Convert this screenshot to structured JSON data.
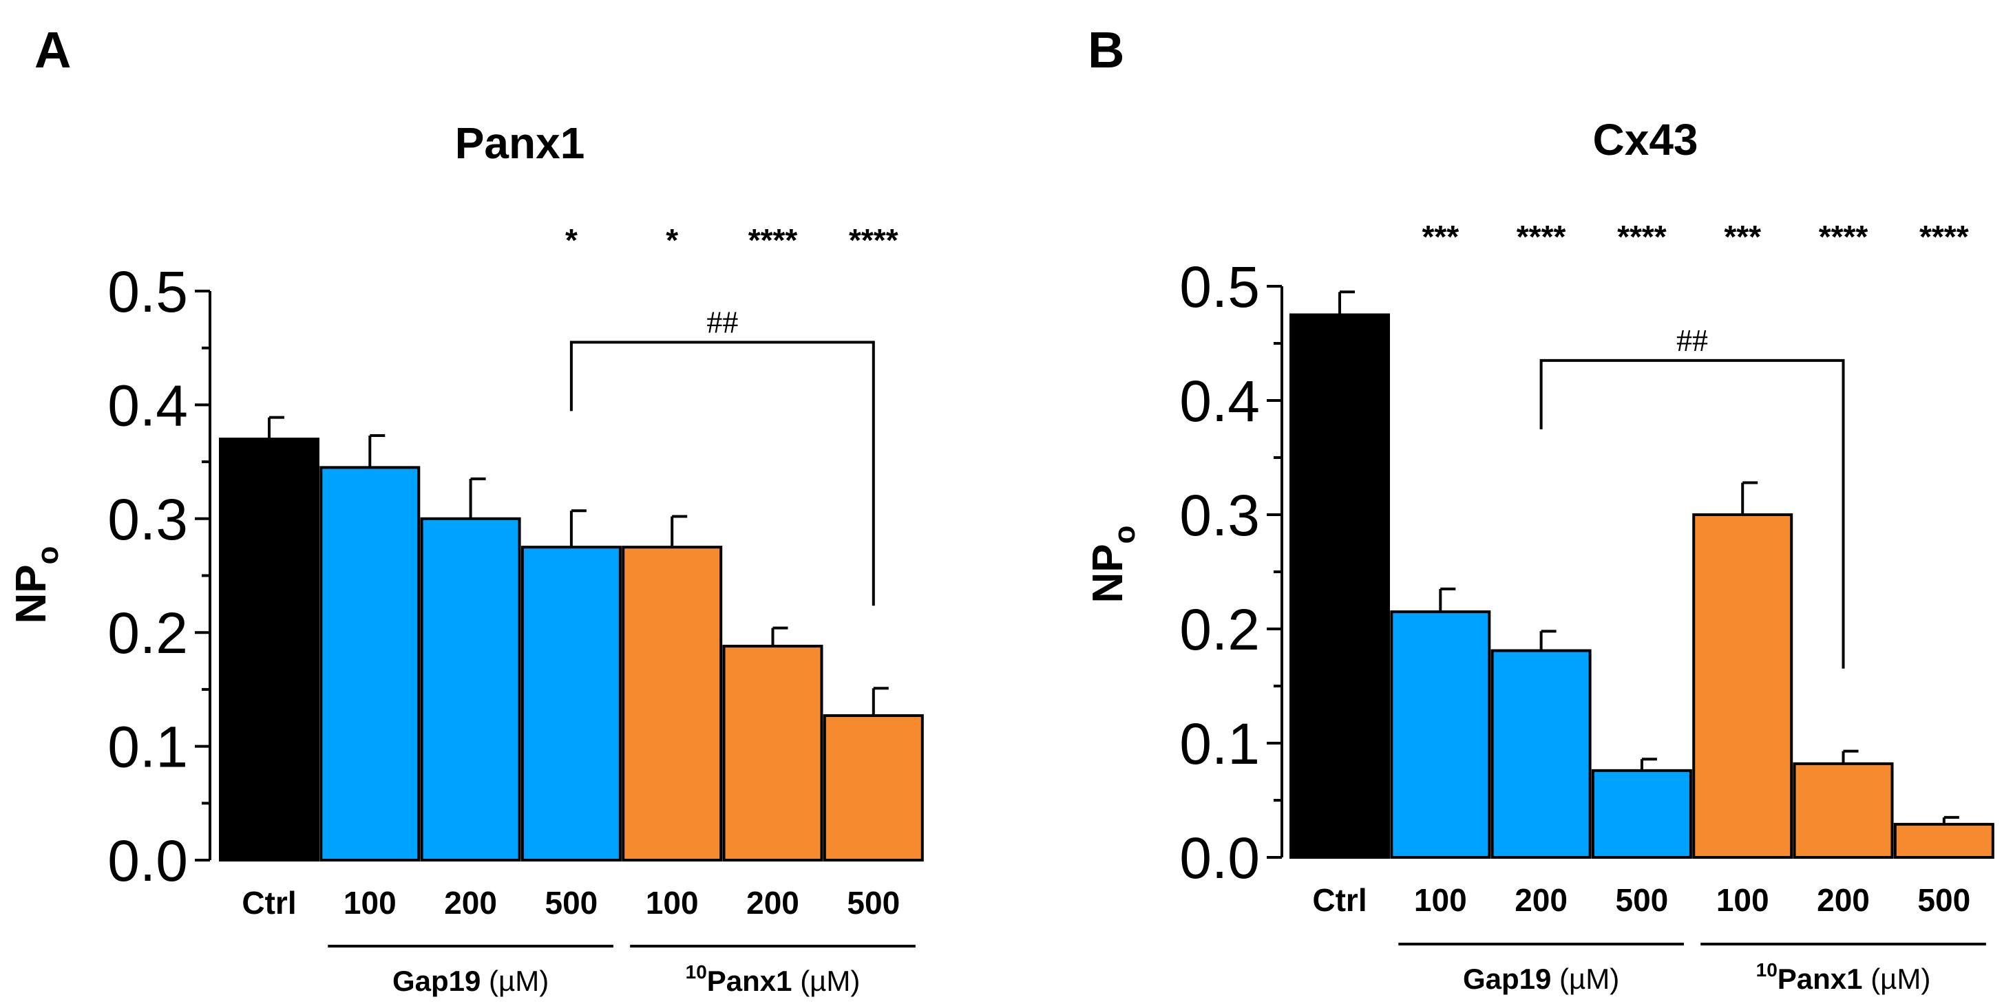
{
  "chart_data": [
    {
      "panel": "A",
      "type": "bar",
      "title": "Panx1",
      "ylabel": "NP",
      "ylabel_sub": "o",
      "ylim": [
        0,
        0.5
      ],
      "yticks": [
        "0.0",
        "0.1",
        "0.2",
        "0.3",
        "0.4",
        "0.5"
      ],
      "categories": [
        "Ctrl",
        "100",
        "200",
        "500",
        "100",
        "200",
        "500"
      ],
      "values": [
        0.37,
        0.345,
        0.3,
        0.275,
        0.275,
        0.188,
        0.127
      ],
      "errors": [
        0.019,
        0.028,
        0.035,
        0.032,
        0.027,
        0.016,
        0.024
      ],
      "colors": [
        "#000000",
        "#00a2ff",
        "#00a2ff",
        "#00a2ff",
        "#f58a2e",
        "#f58a2e",
        "#f58a2e"
      ],
      "significance": [
        "",
        "",
        "",
        "*",
        "*",
        "****",
        "****"
      ],
      "groups": [
        {
          "name": "Gap19",
          "unit": " (µM)",
          "prefix": "",
          "from": 1,
          "to": 3
        },
        {
          "name": "Panx1",
          "unit": " (µM)",
          "prefix": "10",
          "from": 4,
          "to": 6
        }
      ],
      "comparison": {
        "label": "##",
        "from": 3,
        "to": 6,
        "level": 0.455
      }
    },
    {
      "panel": "B",
      "type": "bar",
      "title": "Cx43",
      "ylabel": "NP",
      "ylabel_sub": "o",
      "ylim": [
        0,
        0.5
      ],
      "yticks": [
        "0.0",
        "0.1",
        "0.2",
        "0.3",
        "0.4",
        "0.5"
      ],
      "categories": [
        "Ctrl",
        "100",
        "200",
        "500",
        "100",
        "200",
        "500"
      ],
      "values": [
        0.475,
        0.215,
        0.181,
        0.076,
        0.3,
        0.082,
        0.029
      ],
      "errors": [
        0.02,
        0.02,
        0.017,
        0.01,
        0.028,
        0.011,
        0.006
      ],
      "colors": [
        "#000000",
        "#00a2ff",
        "#00a2ff",
        "#00a2ff",
        "#f58a2e",
        "#f58a2e",
        "#f58a2e"
      ],
      "significance": [
        "",
        "***",
        "****",
        "****",
        "***",
        "****",
        "****"
      ],
      "groups": [
        {
          "name": "Gap19",
          "unit": " (µM)",
          "prefix": "",
          "from": 1,
          "to": 3
        },
        {
          "name": "Panx1",
          "unit": " (µM)",
          "prefix": "10",
          "from": 4,
          "to": 6
        }
      ],
      "comparison": {
        "label": "##",
        "from": 2,
        "to": 5,
        "level": 0.435
      }
    }
  ]
}
